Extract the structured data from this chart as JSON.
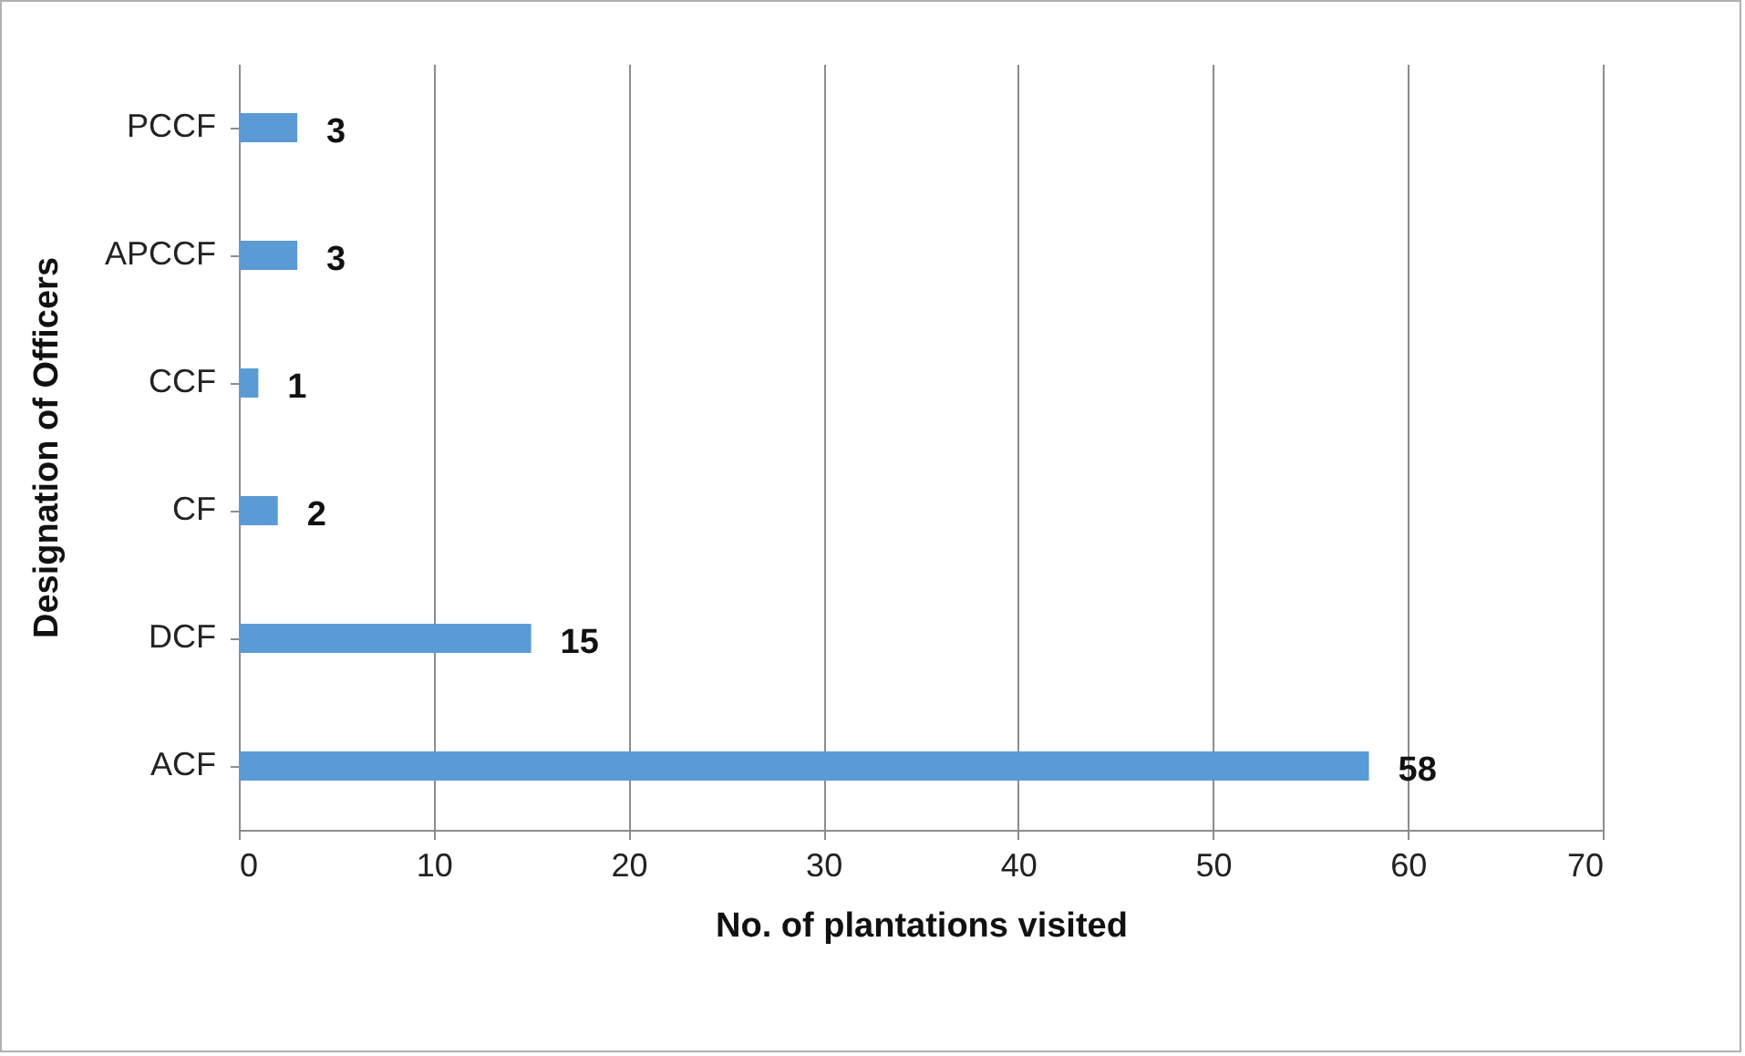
{
  "chart_data": {
    "type": "bar",
    "orientation": "horizontal",
    "xlabel": "No. of plantations visited",
    "ylabel": "Designation of Officers",
    "categories": [
      "PCCF",
      "APCCF",
      "CCF",
      "CF",
      "DCF",
      "ACF"
    ],
    "values": [
      3,
      3,
      1,
      2,
      15,
      58
    ],
    "color": "#5b9bd5",
    "xlim": [
      0,
      70
    ],
    "xticks": [
      0,
      10,
      20,
      30,
      40,
      50,
      60,
      70
    ],
    "grid": "x",
    "data_labels": true
  }
}
